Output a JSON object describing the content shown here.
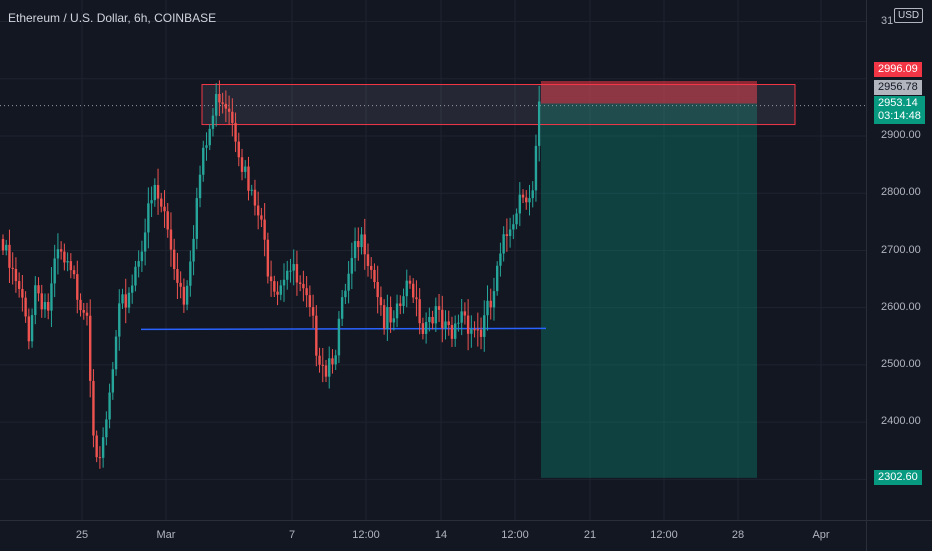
{
  "header": {
    "title": "Ethereum / U.S. Dollar, 6h, COINBASE"
  },
  "price_axis": {
    "currency": "USD",
    "top_clipped_label": "31",
    "ticks": [
      "2900.00",
      "2800.00",
      "2700.00",
      "2600.00",
      "2500.00",
      "2400.00"
    ],
    "labels": {
      "stop_loss": "2996.09",
      "entry": "2956.78",
      "last_price": "2953.14",
      "countdown": "03:14:48",
      "take_profit": "2302.60"
    }
  },
  "time_axis": {
    "ticks": [
      "25",
      "Mar",
      "7",
      "12:00",
      "14",
      "12:00",
      "21",
      "12:00",
      "28",
      "Apr"
    ]
  },
  "colors": {
    "up": "#26a69a",
    "down": "#ef5350",
    "background": "#131722",
    "support_line": "#2962ff",
    "stop_zone": "#f23645",
    "target_zone": "#089981"
  },
  "chart_data": {
    "type": "candlestick",
    "symbol": "Ethereum / U.S. Dollar",
    "interval": "6h",
    "exchange": "COINBASE",
    "ylim": [
      2300,
      3100
    ],
    "annotations": {
      "resistance_zone": [
        2920,
        2990
      ],
      "support_line": 2562,
      "short_position": {
        "entry": 2956.78,
        "stop": 2996.09,
        "target": 2302.6
      },
      "last_price": 2953.14
    }
  }
}
